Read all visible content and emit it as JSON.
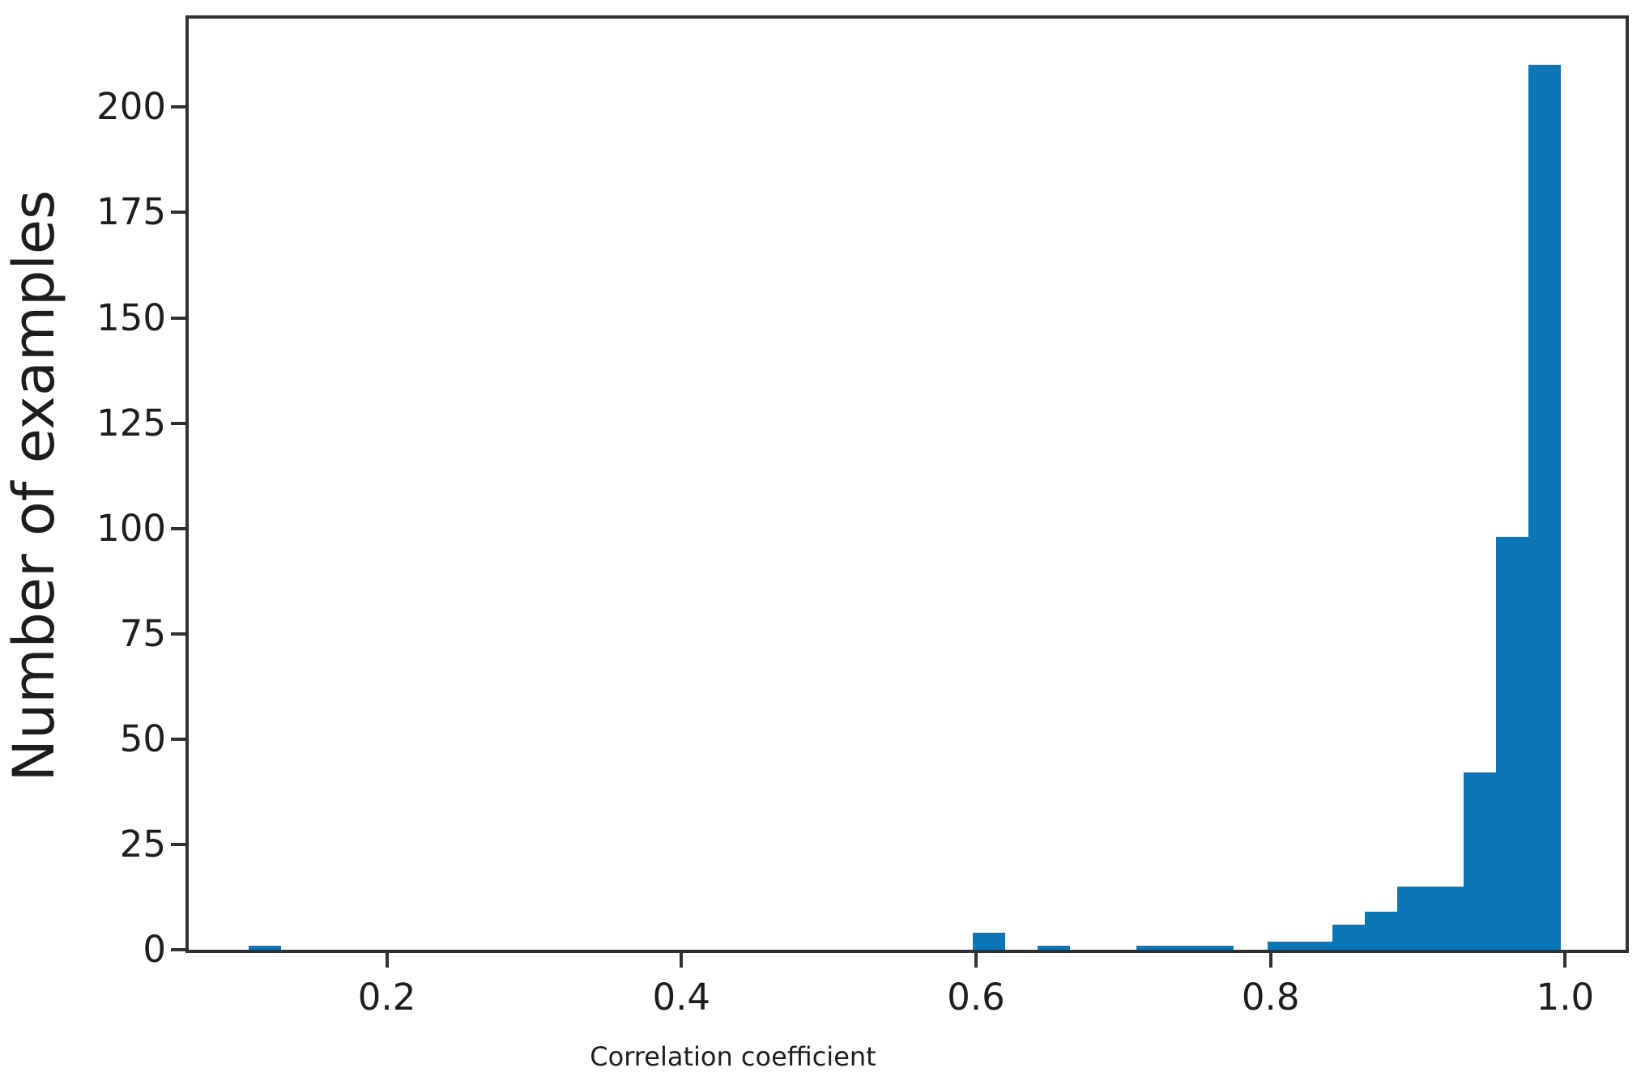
{
  "chart_data": {
    "type": "bar",
    "subtype": "histogram",
    "title": "",
    "xlabel": "Correlation coefficient",
    "ylabel": "Number of examples",
    "xlim": [
      0.0655,
      1.041
    ],
    "ylim": [
      0,
      221
    ],
    "grid": false,
    "legend_position": "none",
    "bar_color": "#0d76b7",
    "axis_color": "#303030",
    "x_ticks": [
      {
        "value": 0.2,
        "label": "0.2"
      },
      {
        "value": 0.4,
        "label": "0.4"
      },
      {
        "value": 0.6,
        "label": "0.6"
      },
      {
        "value": 0.8,
        "label": "0.8"
      },
      {
        "value": 1.0,
        "label": "1.0"
      }
    ],
    "y_ticks": [
      {
        "value": 0,
        "label": "0"
      },
      {
        "value": 25,
        "label": "25"
      },
      {
        "value": 50,
        "label": "50"
      },
      {
        "value": 75,
        "label": "75"
      },
      {
        "value": 100,
        "label": "100"
      },
      {
        "value": 125,
        "label": "125"
      },
      {
        "value": 150,
        "label": "150"
      },
      {
        "value": 175,
        "label": "175"
      },
      {
        "value": 200,
        "label": "200"
      }
    ],
    "bins": [
      {
        "x0": 0.106,
        "x1": 0.128,
        "count": 1
      },
      {
        "x0": 0.598,
        "x1": 0.62,
        "count": 4
      },
      {
        "x0": 0.642,
        "x1": 0.664,
        "count": 1
      },
      {
        "x0": 0.709,
        "x1": 0.731,
        "count": 1
      },
      {
        "x0": 0.731,
        "x1": 0.753,
        "count": 1
      },
      {
        "x0": 0.753,
        "x1": 0.775,
        "count": 1
      },
      {
        "x0": 0.798,
        "x1": 0.82,
        "count": 2
      },
      {
        "x0": 0.82,
        "x1": 0.842,
        "count": 2
      },
      {
        "x0": 0.842,
        "x1": 0.864,
        "count": 6
      },
      {
        "x0": 0.864,
        "x1": 0.886,
        "count": 9
      },
      {
        "x0": 0.886,
        "x1": 0.909,
        "count": 15
      },
      {
        "x0": 0.909,
        "x1": 0.931,
        "count": 15
      },
      {
        "x0": 0.931,
        "x1": 0.953,
        "count": 42
      },
      {
        "x0": 0.953,
        "x1": 0.975,
        "count": 98
      },
      {
        "x0": 0.975,
        "x1": 0.997,
        "count": 210
      }
    ]
  }
}
